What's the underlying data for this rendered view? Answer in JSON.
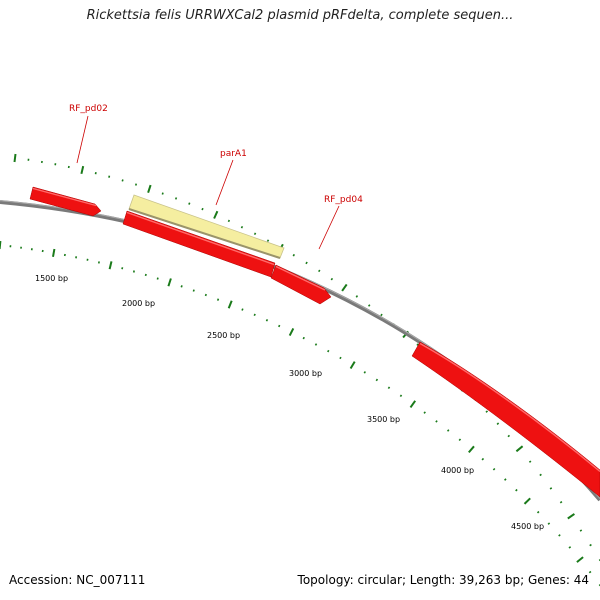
{
  "title": "Rickettsia felis URRWXCal2 plasmid pRFdelta, complete sequen...",
  "footer": {
    "accession": "Accession: NC_007111",
    "summary": "Topology: circular; Length: 39,263 bp; Genes: 44"
  },
  "colors": {
    "backbone": "#7a7a7a",
    "gene": "#ee1111",
    "gene_highlight": "#f5eea0",
    "tick": "#1a7a1a",
    "label_text": "#cc0000"
  },
  "position_labels": [
    "1500 bp",
    "2000 bp",
    "2500 bp",
    "3000 bp",
    "3500 bp",
    "4000 bp",
    "4500 bp"
  ],
  "gene_labels": [
    "RF_pd02",
    "parA1",
    "RF_pd04"
  ]
}
